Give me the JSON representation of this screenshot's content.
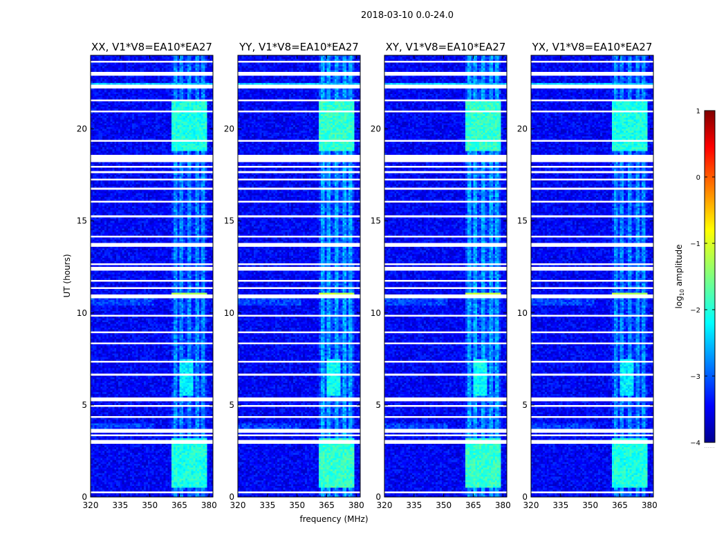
{
  "suptitle": "2018-03-10 0.0-24.0",
  "colormap": "jet",
  "colorbar": {
    "label": "log",
    "label_subscript": "10",
    "label_suffix": " amplitude",
    "range": [
      -4,
      1
    ],
    "ticks": [
      1,
      0,
      -1,
      -2,
      -3,
      -4
    ],
    "tick_labels": [
      "1",
      "0",
      "−1",
      "−2",
      "−3",
      "−4"
    ],
    "foot_label": "......"
  },
  "chart_data": {
    "type": "heatmap",
    "xlabel": "frequency (MHz)",
    "ylabel": "UT (hours)",
    "xlim": [
      320,
      382
    ],
    "ylim": [
      0,
      24
    ],
    "x_ticks": [
      320,
      335,
      350,
      365,
      380
    ],
    "x_tick_labels": [
      "320",
      "335",
      "350",
      "365",
      "380"
    ],
    "y_ticks": [
      0,
      5,
      10,
      15,
      20
    ],
    "y_tick_labels": [
      "0",
      "5",
      "10",
      "15",
      "20"
    ],
    "z_units": "log10 amplitude",
    "zlim": [
      -4,
      1
    ],
    "background_level": -3.4,
    "rfi_band_mhz": [
      361,
      375
    ],
    "rfi_band_level": -2.3,
    "rfi_columns_mhz": [
      361.5,
      364.5,
      368,
      372,
      375.5,
      379
    ],
    "bright_features": [
      {
        "ut": 11.0,
        "freq_range": [
          361,
          379
        ],
        "level": -1.3
      },
      {
        "ut_range": [
          0.5,
          3.2
        ],
        "freq_range": [
          361,
          379
        ],
        "level": -2.0
      },
      {
        "ut_range": [
          18.8,
          21.5
        ],
        "freq_range": [
          361,
          379
        ],
        "level": -2.0
      },
      {
        "ut_range": [
          5.5,
          7.5
        ],
        "freq_range": [
          365,
          372
        ],
        "level": -2.2
      }
    ],
    "flagged_rows_ut": [
      [
        0.25,
        0.3
      ],
      [
        2.9,
        3.05
      ],
      [
        3.3,
        3.4
      ],
      [
        3.55,
        3.7
      ],
      [
        4.3,
        4.35
      ],
      [
        4.9,
        5.0
      ],
      [
        5.2,
        5.4
      ],
      [
        6.6,
        6.65
      ],
      [
        7.35,
        7.4
      ],
      [
        8.3,
        8.35
      ],
      [
        8.9,
        8.95
      ],
      [
        9.8,
        9.85
      ],
      [
        10.85,
        10.95
      ],
      [
        11.3,
        11.35
      ],
      [
        11.7,
        11.75
      ],
      [
        12.35,
        12.45
      ],
      [
        12.6,
        12.7
      ],
      [
        13.6,
        13.75
      ],
      [
        14.1,
        14.15
      ],
      [
        15.2,
        15.25
      ],
      [
        16.0,
        16.05
      ],
      [
        16.7,
        16.8
      ],
      [
        17.2,
        17.25
      ],
      [
        17.6,
        17.7
      ],
      [
        17.95,
        18.0
      ],
      [
        18.25,
        18.6
      ],
      [
        19.35,
        19.4
      ],
      [
        20.9,
        20.95
      ],
      [
        21.5,
        21.55
      ],
      [
        22.25,
        22.4
      ],
      [
        22.9,
        23.1
      ],
      [
        23.6,
        23.7
      ]
    ],
    "panels": [
      {
        "title": "XX, V1*V8=EA10*EA27",
        "polarization": "XX"
      },
      {
        "title": "YY, V1*V8=EA10*EA27",
        "polarization": "YY"
      },
      {
        "title": "XY, V1*V8=EA10*EA27",
        "polarization": "XY"
      },
      {
        "title": "YX, V1*V8=EA10*EA27",
        "polarization": "YX"
      }
    ]
  }
}
